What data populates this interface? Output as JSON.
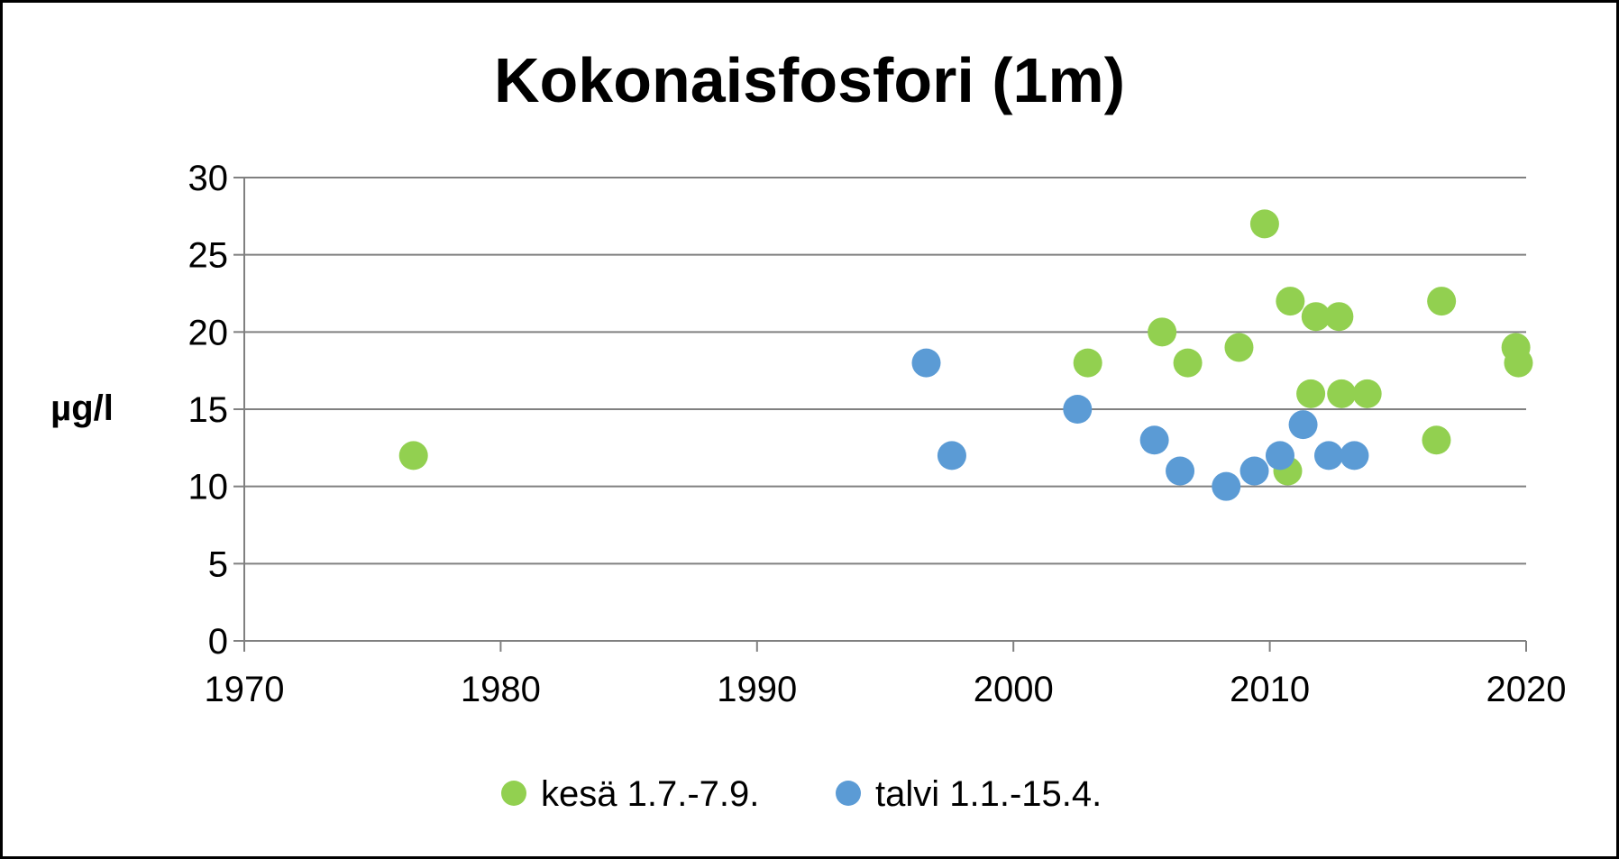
{
  "chart_data": {
    "type": "scatter",
    "title": "Kokonaisfosfori (1m)",
    "xlabel": "",
    "ylabel": "µg/l",
    "xlim": [
      1970,
      2020
    ],
    "ylim": [
      0,
      30
    ],
    "x_ticks": [
      1970,
      1980,
      1990,
      2000,
      2010,
      2020
    ],
    "y_ticks": [
      0,
      5,
      10,
      15,
      20,
      25,
      30
    ],
    "grid": "horizontal",
    "legend_position": "bottom",
    "series": [
      {
        "name": "kesä 1.7.-7.9.",
        "color": "#92D050",
        "points": [
          {
            "x": 1976.6,
            "y": 12
          },
          {
            "x": 2002.9,
            "y": 18
          },
          {
            "x": 2005.8,
            "y": 20
          },
          {
            "x": 2006.8,
            "y": 18
          },
          {
            "x": 2008.8,
            "y": 19
          },
          {
            "x": 2009.8,
            "y": 27
          },
          {
            "x": 2010.7,
            "y": 11
          },
          {
            "x": 2010.8,
            "y": 22
          },
          {
            "x": 2011.6,
            "y": 16
          },
          {
            "x": 2011.8,
            "y": 21
          },
          {
            "x": 2012.7,
            "y": 21
          },
          {
            "x": 2012.8,
            "y": 16
          },
          {
            "x": 2013.8,
            "y": 16
          },
          {
            "x": 2016.5,
            "y": 13
          },
          {
            "x": 2016.7,
            "y": 22
          },
          {
            "x": 2019.6,
            "y": 19
          },
          {
            "x": 2019.7,
            "y": 18
          }
        ]
      },
      {
        "name": "talvi 1.1.-15.4.",
        "color": "#5B9BD5",
        "points": [
          {
            "x": 1996.6,
            "y": 18
          },
          {
            "x": 1997.6,
            "y": 12
          },
          {
            "x": 2002.5,
            "y": 15
          },
          {
            "x": 2005.5,
            "y": 13
          },
          {
            "x": 2006.5,
            "y": 11
          },
          {
            "x": 2008.3,
            "y": 10
          },
          {
            "x": 2009.4,
            "y": 11
          },
          {
            "x": 2010.4,
            "y": 12
          },
          {
            "x": 2011.3,
            "y": 14
          },
          {
            "x": 2012.3,
            "y": 12
          },
          {
            "x": 2013.3,
            "y": 12
          }
        ]
      }
    ]
  }
}
